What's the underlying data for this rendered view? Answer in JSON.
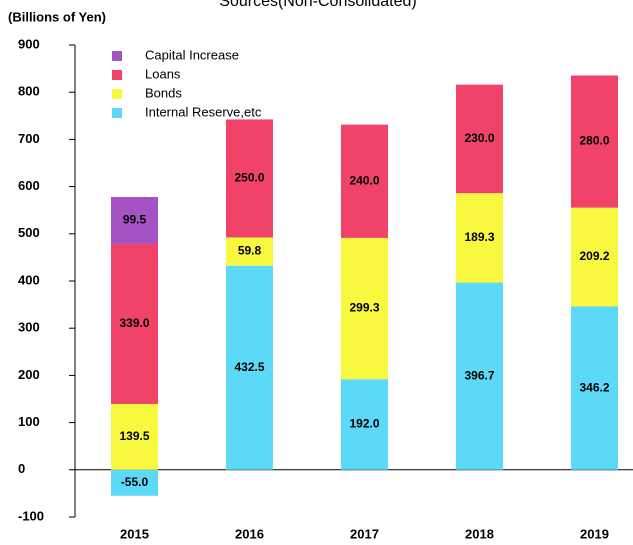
{
  "chart_data": {
    "type": "stacked_bar",
    "title": "Sources(Non-Consolidated)",
    "y_label": "(Billions of Yen)",
    "categories": [
      "2015",
      "2016",
      "2017",
      "2018",
      "2019"
    ],
    "series": [
      {
        "name": "Internal Reserve,etc",
        "color": "#5cd9f6",
        "values": [
          -55,
          432.5,
          192,
          396.7,
          346.2
        ],
        "value_labels": [
          "-55.0",
          "432.5",
          "192.0",
          "396.7",
          "346.2"
        ]
      },
      {
        "name": "Bonds",
        "color": "#f8f83e",
        "values": [
          139.5,
          59.8,
          299.3,
          189.3,
          209.2
        ],
        "value_labels": [
          "139.5",
          "59.8",
          "299.3",
          "189.3",
          "209.2"
        ]
      },
      {
        "name": "Loans",
        "color": "#f1436a",
        "values": [
          339,
          250,
          240,
          230,
          280
        ],
        "value_labels": [
          "339.0",
          "250.0",
          "240.0",
          "230.0",
          "280.0"
        ]
      },
      {
        "name": "Capital Increase",
        "color": "#a453c4",
        "values": [
          99.5,
          null,
          null,
          null,
          null
        ],
        "value_labels": [
          "99.5",
          null,
          null,
          null,
          null
        ]
      }
    ],
    "ylim": [
      -100,
      900
    ],
    "yticks": [
      -100,
      0,
      100,
      200,
      300,
      400,
      500,
      600,
      700,
      800,
      900
    ]
  }
}
